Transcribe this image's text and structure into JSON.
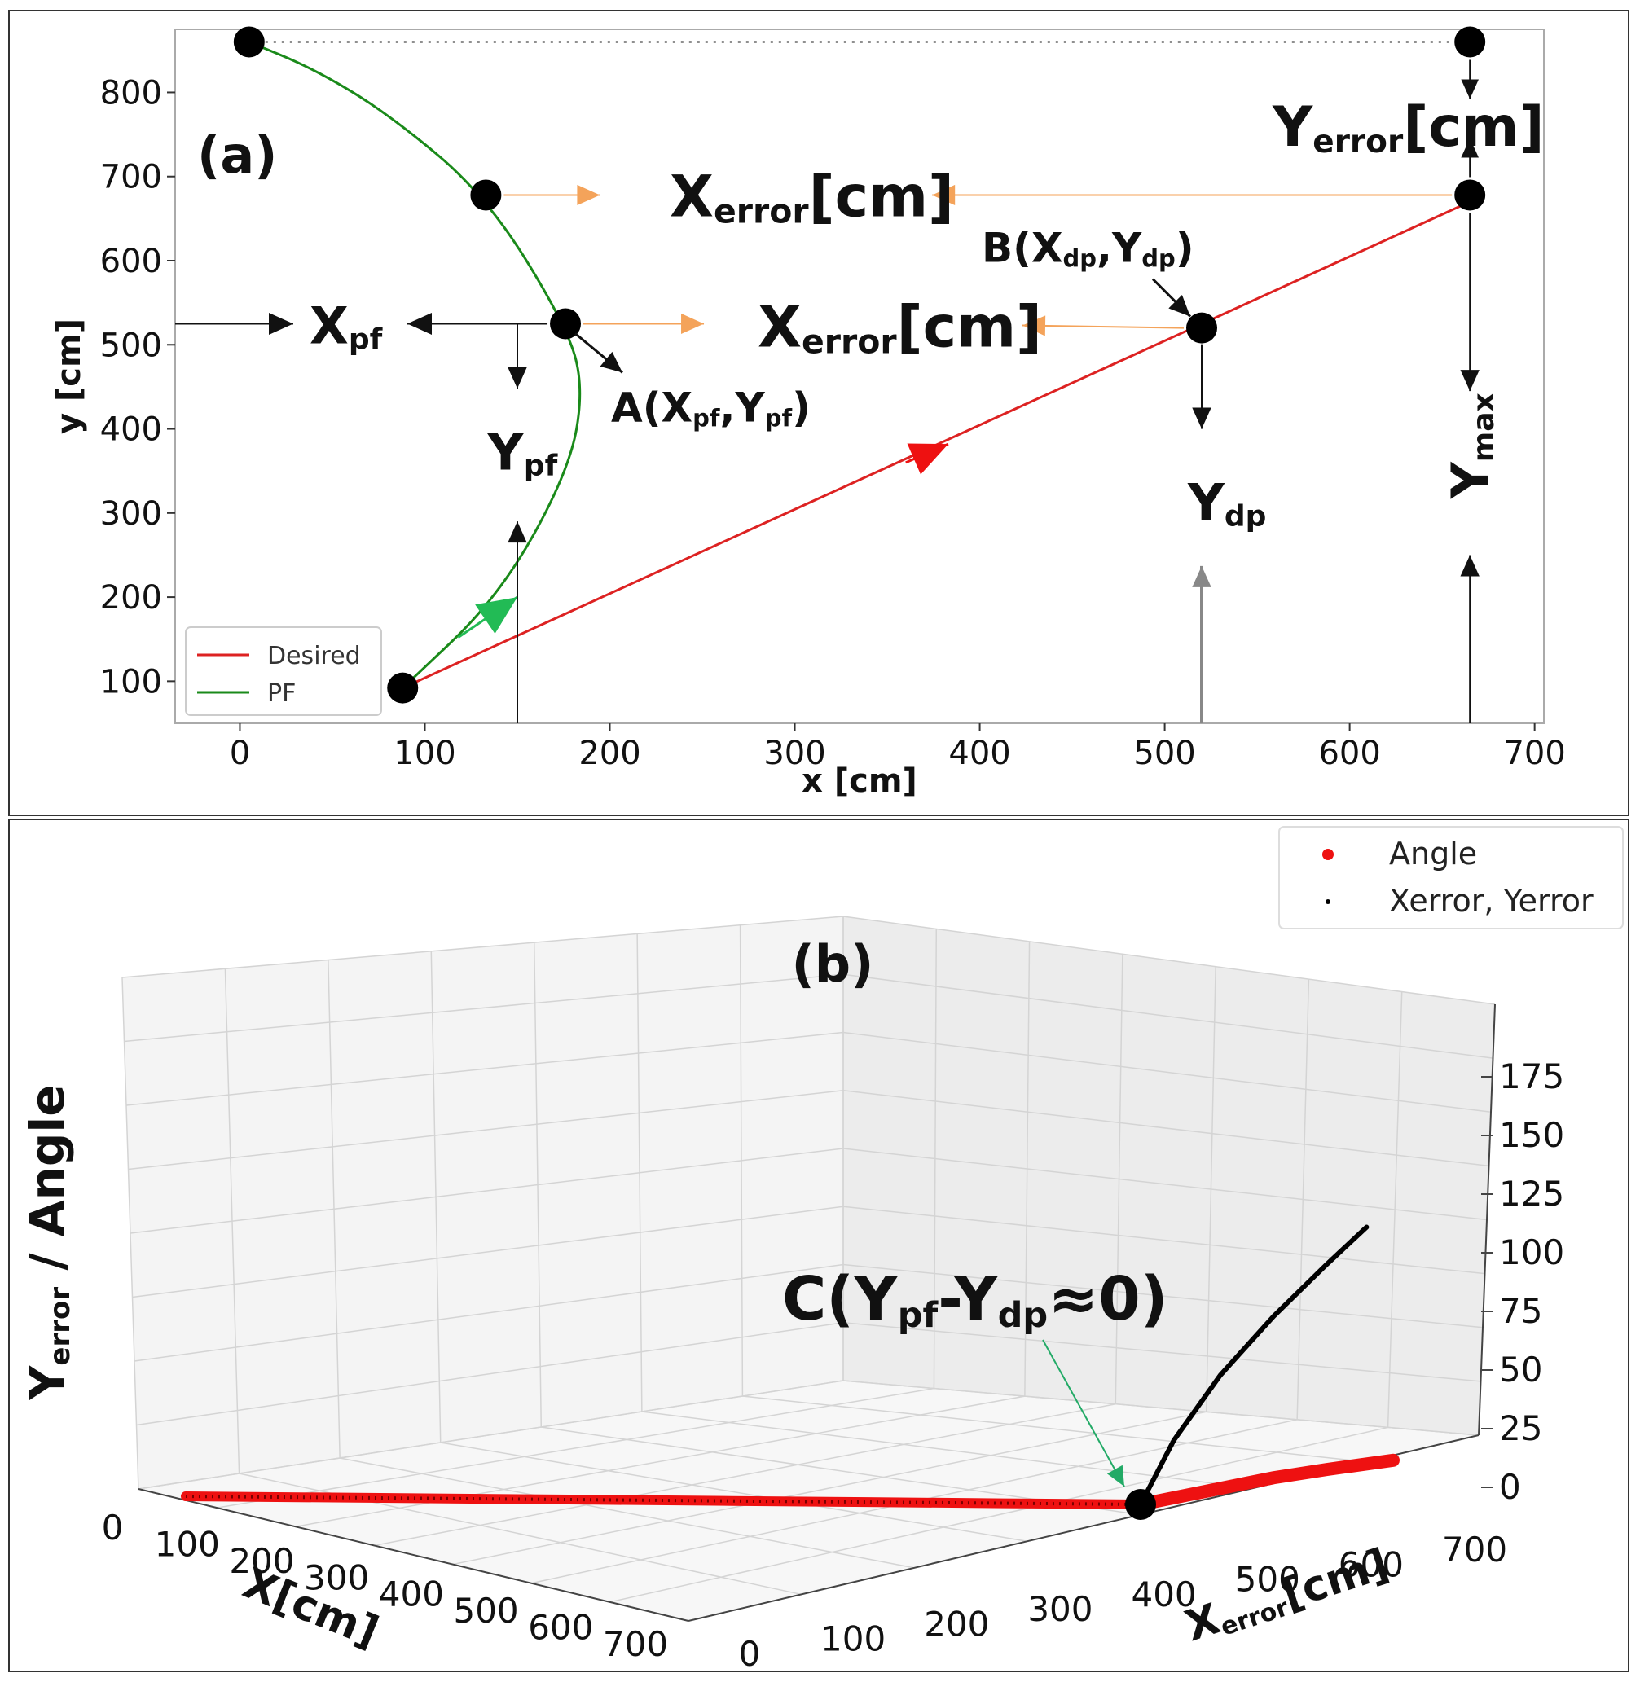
{
  "chart_data": [
    {
      "panel": "(a)",
      "type": "line",
      "xlabel": "x [cm]",
      "ylabel": "y [cm]",
      "xlim": [
        -35,
        705
      ],
      "ylim": [
        50,
        875
      ],
      "xticks": [
        0,
        100,
        200,
        300,
        400,
        500,
        600,
        700
      ],
      "yticks": [
        100,
        200,
        300,
        400,
        500,
        600,
        700,
        800
      ],
      "legend": {
        "position": "bottom-left",
        "entries": [
          "Desired",
          "PF"
        ]
      },
      "series": [
        {
          "name": "Desired",
          "color": "#dd2222",
          "x": [
            88,
            665
          ],
          "y": [
            92,
            670
          ]
        },
        {
          "name": "PF",
          "color": "#1a8a1a",
          "x": [
            88,
            140,
            178,
            186,
            176,
            133,
            80,
            40,
            5
          ],
          "y": [
            92,
            200,
            350,
            450,
            525,
            678,
            775,
            828,
            860
          ]
        }
      ],
      "points": [
        {
          "x": 5,
          "y": 860
        },
        {
          "x": 665,
          "y": 860
        },
        {
          "x": 133,
          "y": 678
        },
        {
          "x": 665,
          "y": 678
        },
        {
          "x": 176,
          "y": 525
        },
        {
          "x": 520,
          "y": 520
        },
        {
          "x": 88,
          "y": 92
        }
      ],
      "annotations": {
        "panel_label": "(a)",
        "x_error_upper": "Xerror[cm]",
        "x_error_lower": "Xerror[cm]",
        "y_error": "Yerror[cm]",
        "point_a": "A(Xpf,Ypf)",
        "point_b": "B(Xdp,Ydp)",
        "x_pf": "Xpf",
        "y_pf": "Ypf",
        "y_dp": "Ydp",
        "y_max": "Ymax"
      },
      "colors": {
        "annotation_arrow": "#f4a35a",
        "marker": "#000000"
      }
    },
    {
      "panel": "(b)",
      "type": "scatter",
      "xlabel": "X[cm]",
      "ylabel": "Xerror[cm]",
      "zlabel": "Yerror / Angle",
      "x_ticks": [
        0,
        100,
        200,
        300,
        400,
        500,
        600,
        700
      ],
      "y_ticks": [
        0,
        100,
        200,
        300,
        400,
        500,
        600,
        700
      ],
      "z_ticks": [
        0,
        25,
        50,
        75,
        100,
        125,
        150,
        175
      ],
      "legend": {
        "position": "top-right",
        "entries": [
          "Angle",
          "Xerror, Yerror"
        ]
      },
      "series": [
        {
          "name": "Angle",
          "color": "#ee1111",
          "x": [
            0,
            100,
            200,
            300,
            400,
            500,
            600,
            700,
            700,
            700,
            700,
            700
          ],
          "xerror": [
            0,
            0,
            0,
            0,
            0,
            0,
            0,
            0,
            100,
            200,
            280,
            380
          ],
          "value": [
            0,
            0,
            0,
            0,
            0,
            0,
            0,
            0,
            6,
            12,
            15,
            18
          ]
        },
        {
          "name": "Xerror, Yerror",
          "color": "#000000",
          "x": [
            0,
            100,
            200,
            300,
            400,
            500,
            600,
            700,
            700,
            700,
            700,
            700,
            700
          ],
          "xerror": [
            0,
            0,
            0,
            0,
            0,
            0,
            0,
            0,
            50,
            120,
            200,
            280,
            340
          ],
          "value": [
            0,
            0,
            0,
            0,
            0,
            0,
            0,
            0,
            45,
            90,
            130,
            165,
            190
          ]
        }
      ],
      "annotations": {
        "panel_label": "(b)",
        "point_c": "C(Ypf-Ydp≈0)"
      }
    }
  ]
}
